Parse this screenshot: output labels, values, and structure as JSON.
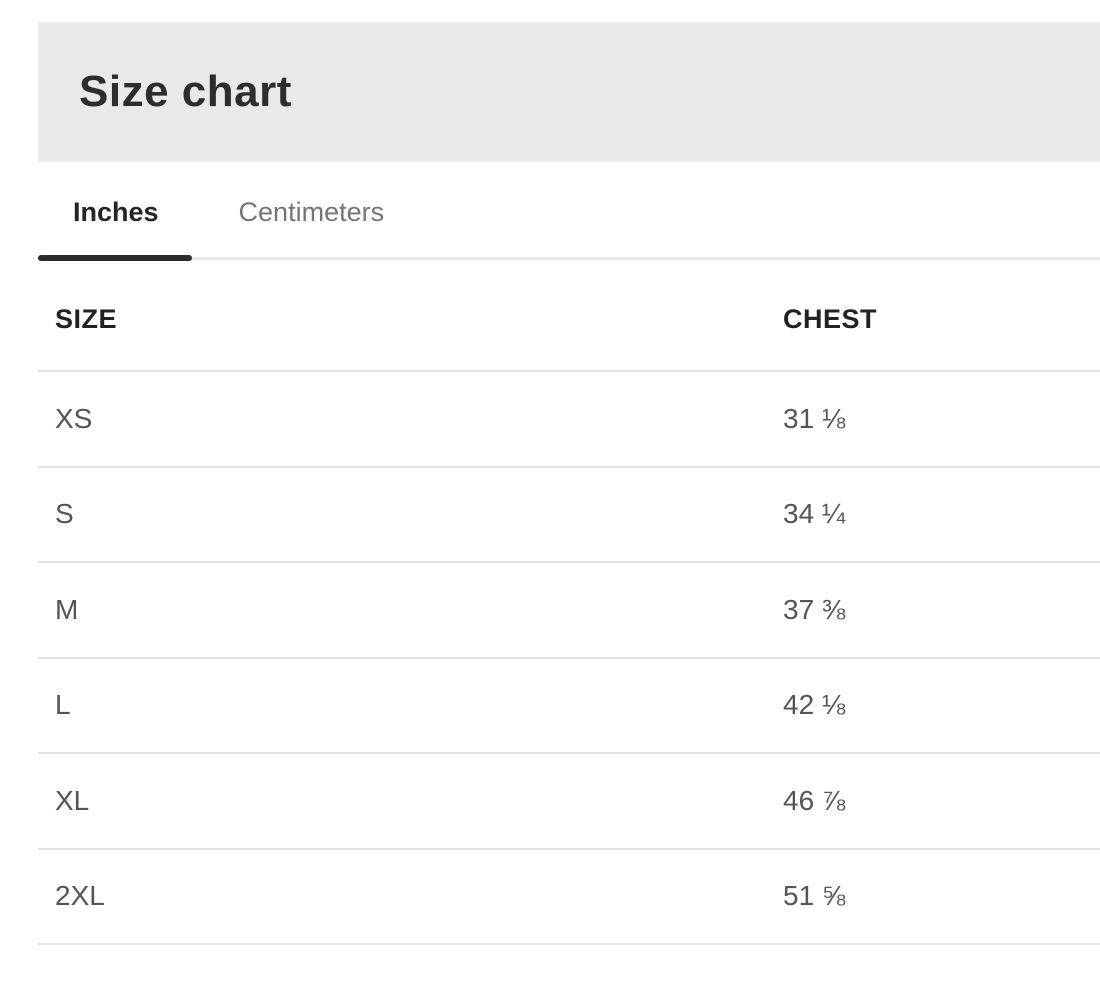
{
  "header": {
    "title": "Size chart"
  },
  "tabs": {
    "inches": {
      "label": "Inches",
      "active": true
    },
    "centimeters": {
      "label": "Centimeters",
      "active": false
    }
  },
  "table": {
    "columns": {
      "size": "SIZE",
      "chest": "CHEST"
    },
    "rows": [
      {
        "size": "XS",
        "chest": "31 ⅛"
      },
      {
        "size": "S",
        "chest": "34 ¼"
      },
      {
        "size": "M",
        "chest": "37 ⅜"
      },
      {
        "size": "L",
        "chest": "42 ⅛"
      },
      {
        "size": "XL",
        "chest": "46 ⅞"
      },
      {
        "size": "2XL",
        "chest": "51 ⅝"
      }
    ]
  },
  "colors": {
    "panel_bg": "#e9e9e9",
    "heading_text": "#2d2d2d",
    "active_tab_text": "#252525",
    "inactive_tab_text": "#757575",
    "active_tab_bar": "#2b2b2b",
    "header_text": "#222222",
    "row_text": "#555555",
    "divider": "#e3e3e3"
  }
}
